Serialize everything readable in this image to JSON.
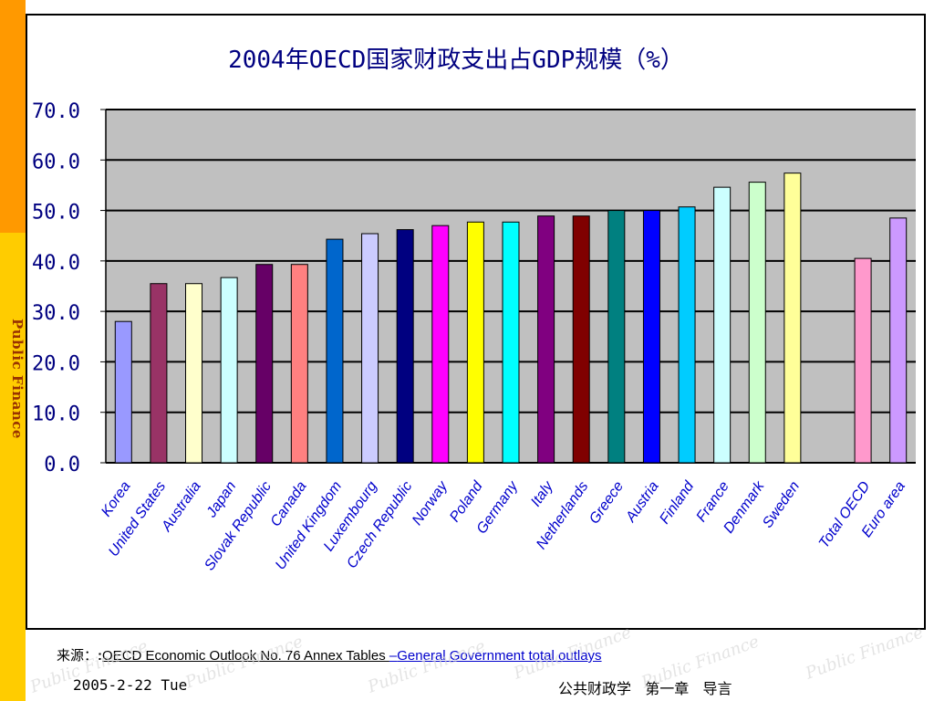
{
  "sidebar": {
    "label": "Public Finance"
  },
  "chart_data": {
    "type": "bar",
    "title": "2004年OECD国家财政支出占GDP规模（%）",
    "xlabel": "",
    "ylabel": "",
    "ylim": [
      0,
      70
    ],
    "yticks": [
      "0.0",
      "10.0",
      "20.0",
      "30.0",
      "40.0",
      "50.0",
      "60.0",
      "70.0"
    ],
    "grid": true,
    "legend": "none",
    "categories": [
      "Korea",
      "United States",
      "Australia",
      "Japan",
      "Slovak Republic",
      "Canada",
      "United Kingdom",
      "Luxembourg",
      "Czech Republic",
      "Norway",
      "Poland",
      "Germany",
      "Italy",
      "Netherlands",
      "Greece",
      "Austria",
      "Finland",
      "France",
      "Denmark",
      "Sweden",
      "",
      "Total OECD",
      "Euro area"
    ],
    "values": [
      28.0,
      35.5,
      35.5,
      36.7,
      39.3,
      39.3,
      44.3,
      45.4,
      46.2,
      47.0,
      47.7,
      47.7,
      48.9,
      48.9,
      50.0,
      50.0,
      50.7,
      54.6,
      55.6,
      57.4,
      null,
      40.5,
      48.5
    ],
    "colors": [
      "#9999ff",
      "#993366",
      "#ffffcc",
      "#ccffff",
      "#660066",
      "#ff8080",
      "#0066cc",
      "#ccccff",
      "#000080",
      "#ff00ff",
      "#ffff00",
      "#00ffff",
      "#800080",
      "#800000",
      "#008080",
      "#0000ff",
      "#00ccff",
      "#ccffff",
      "#ccffcc",
      "#ffff99",
      "",
      "#ff99cc",
      "#cc99ff"
    ]
  },
  "source": {
    "label": "来源：",
    "colon": ":",
    "text": "OECD Economic Outlook No. 76 Annex Tables ",
    "link_dash": "–",
    "link": "General  Government total outlays"
  },
  "footer": {
    "date": "2005-2-22 Tue",
    "course": "公共财政学   第一章   导言"
  },
  "watermark": {
    "text": "Public Finance"
  },
  "colors": {
    "plot_bg": "#c0c0c0",
    "side_orange": "#ff9900",
    "side_yellow": "#ffcc00",
    "axis_text": "#000080"
  }
}
